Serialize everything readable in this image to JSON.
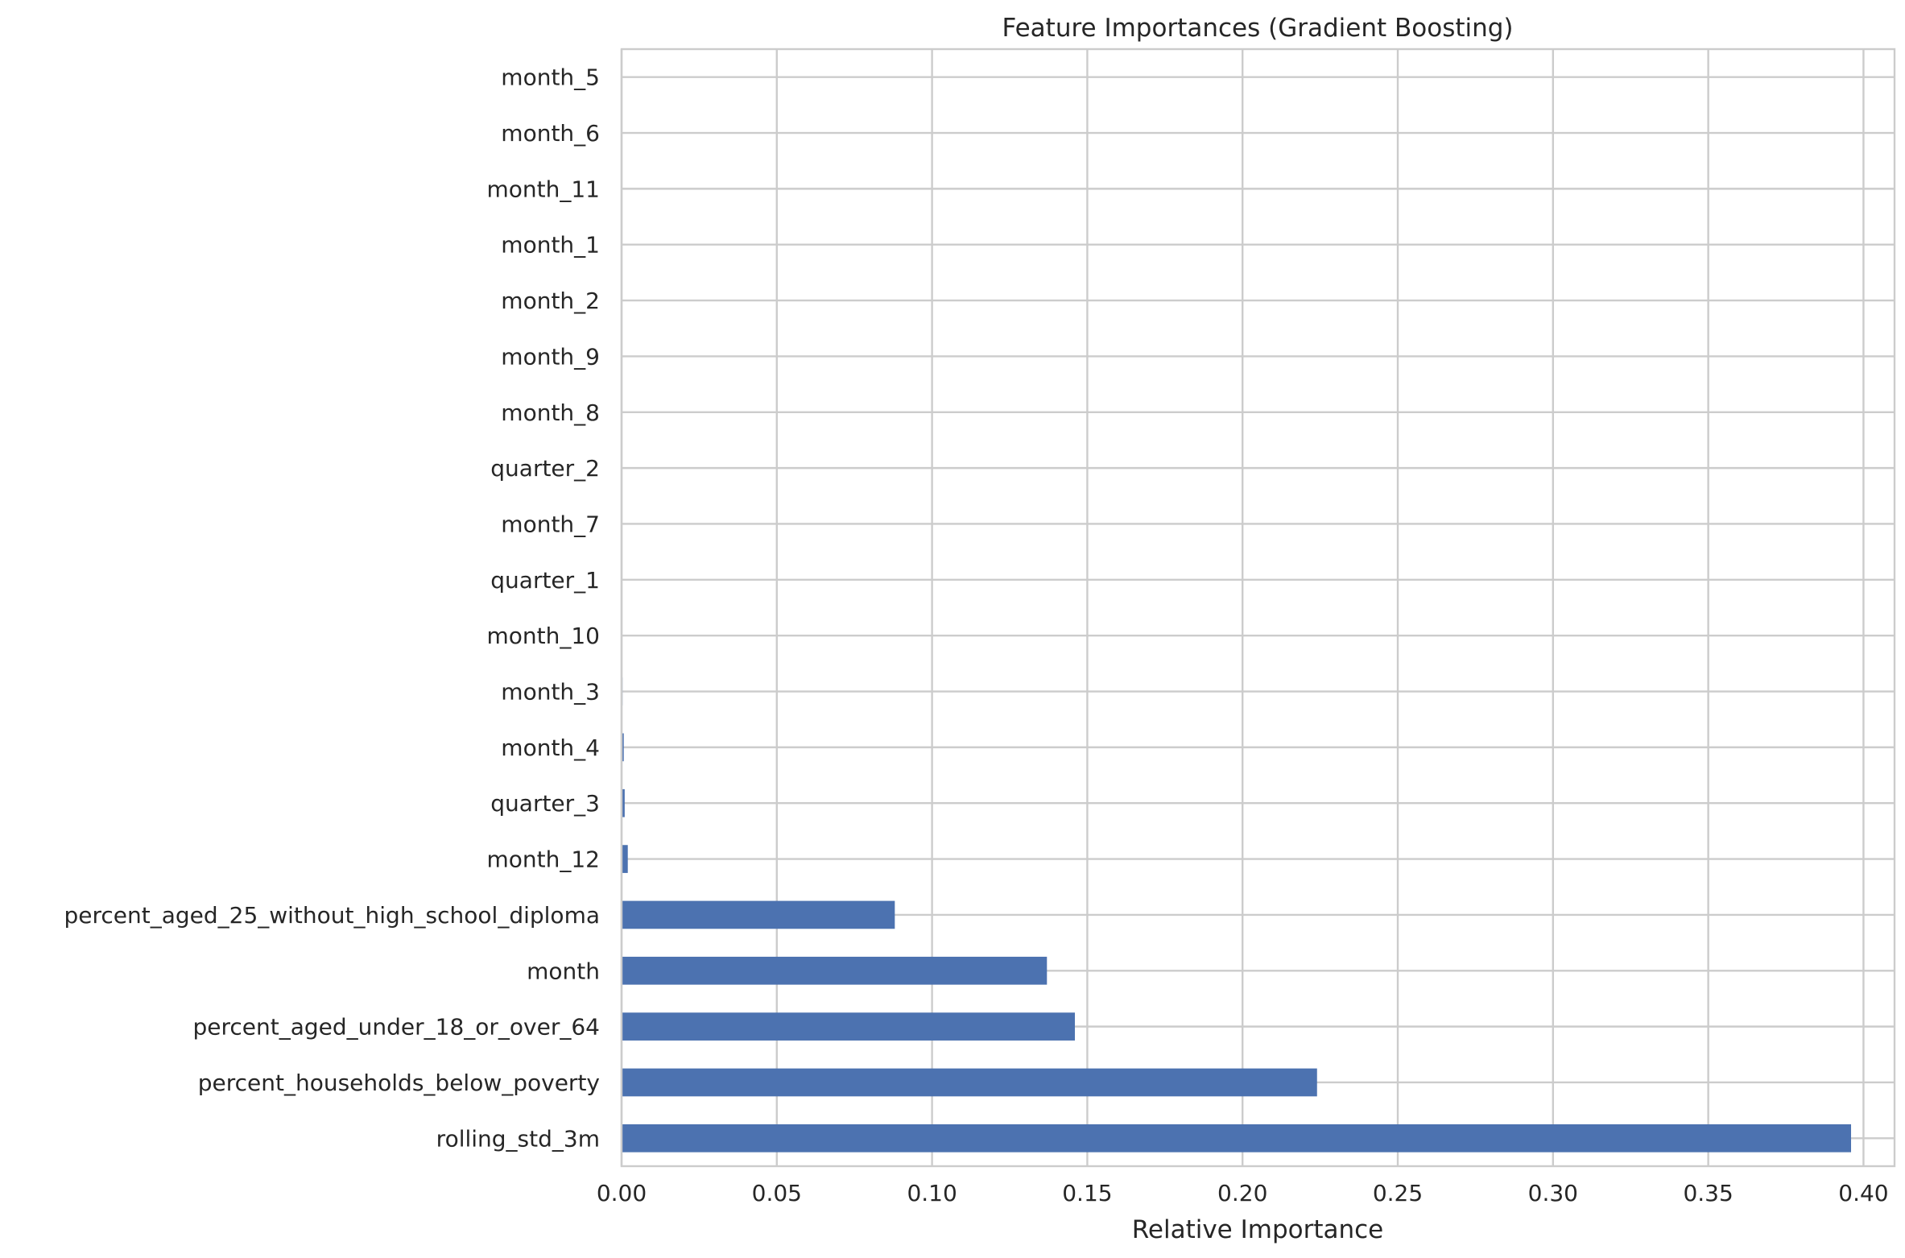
{
  "chart_data": {
    "type": "bar",
    "orientation": "horizontal",
    "title": "Feature Importances (Gradient Boosting)",
    "xlabel": "Relative Importance",
    "ylabel": "",
    "xlim": [
      0,
      0.41
    ],
    "xticks": [
      "0.00",
      "0.05",
      "0.10",
      "0.15",
      "0.20",
      "0.25",
      "0.30",
      "0.35",
      "0.40"
    ],
    "grid": true,
    "bar_color": "#4c72b0",
    "categories": [
      "month_5",
      "month_6",
      "month_11",
      "month_1",
      "month_2",
      "month_9",
      "month_8",
      "quarter_2",
      "month_7",
      "quarter_1",
      "month_10",
      "month_3",
      "month_4",
      "quarter_3",
      "month_12",
      "percent_aged_25_without_high_school_diploma",
      "month",
      "percent_aged_under_18_or_over_64",
      "percent_households_below_poverty",
      "rolling_std_3m"
    ],
    "values": [
      0.0,
      0.0,
      0.0,
      0.0,
      0.0,
      0.0,
      0.0,
      0.0,
      0.0,
      0.0,
      0.0,
      0.0003,
      0.0007,
      0.001,
      0.002,
      0.088,
      0.137,
      0.146,
      0.224,
      0.396
    ]
  }
}
